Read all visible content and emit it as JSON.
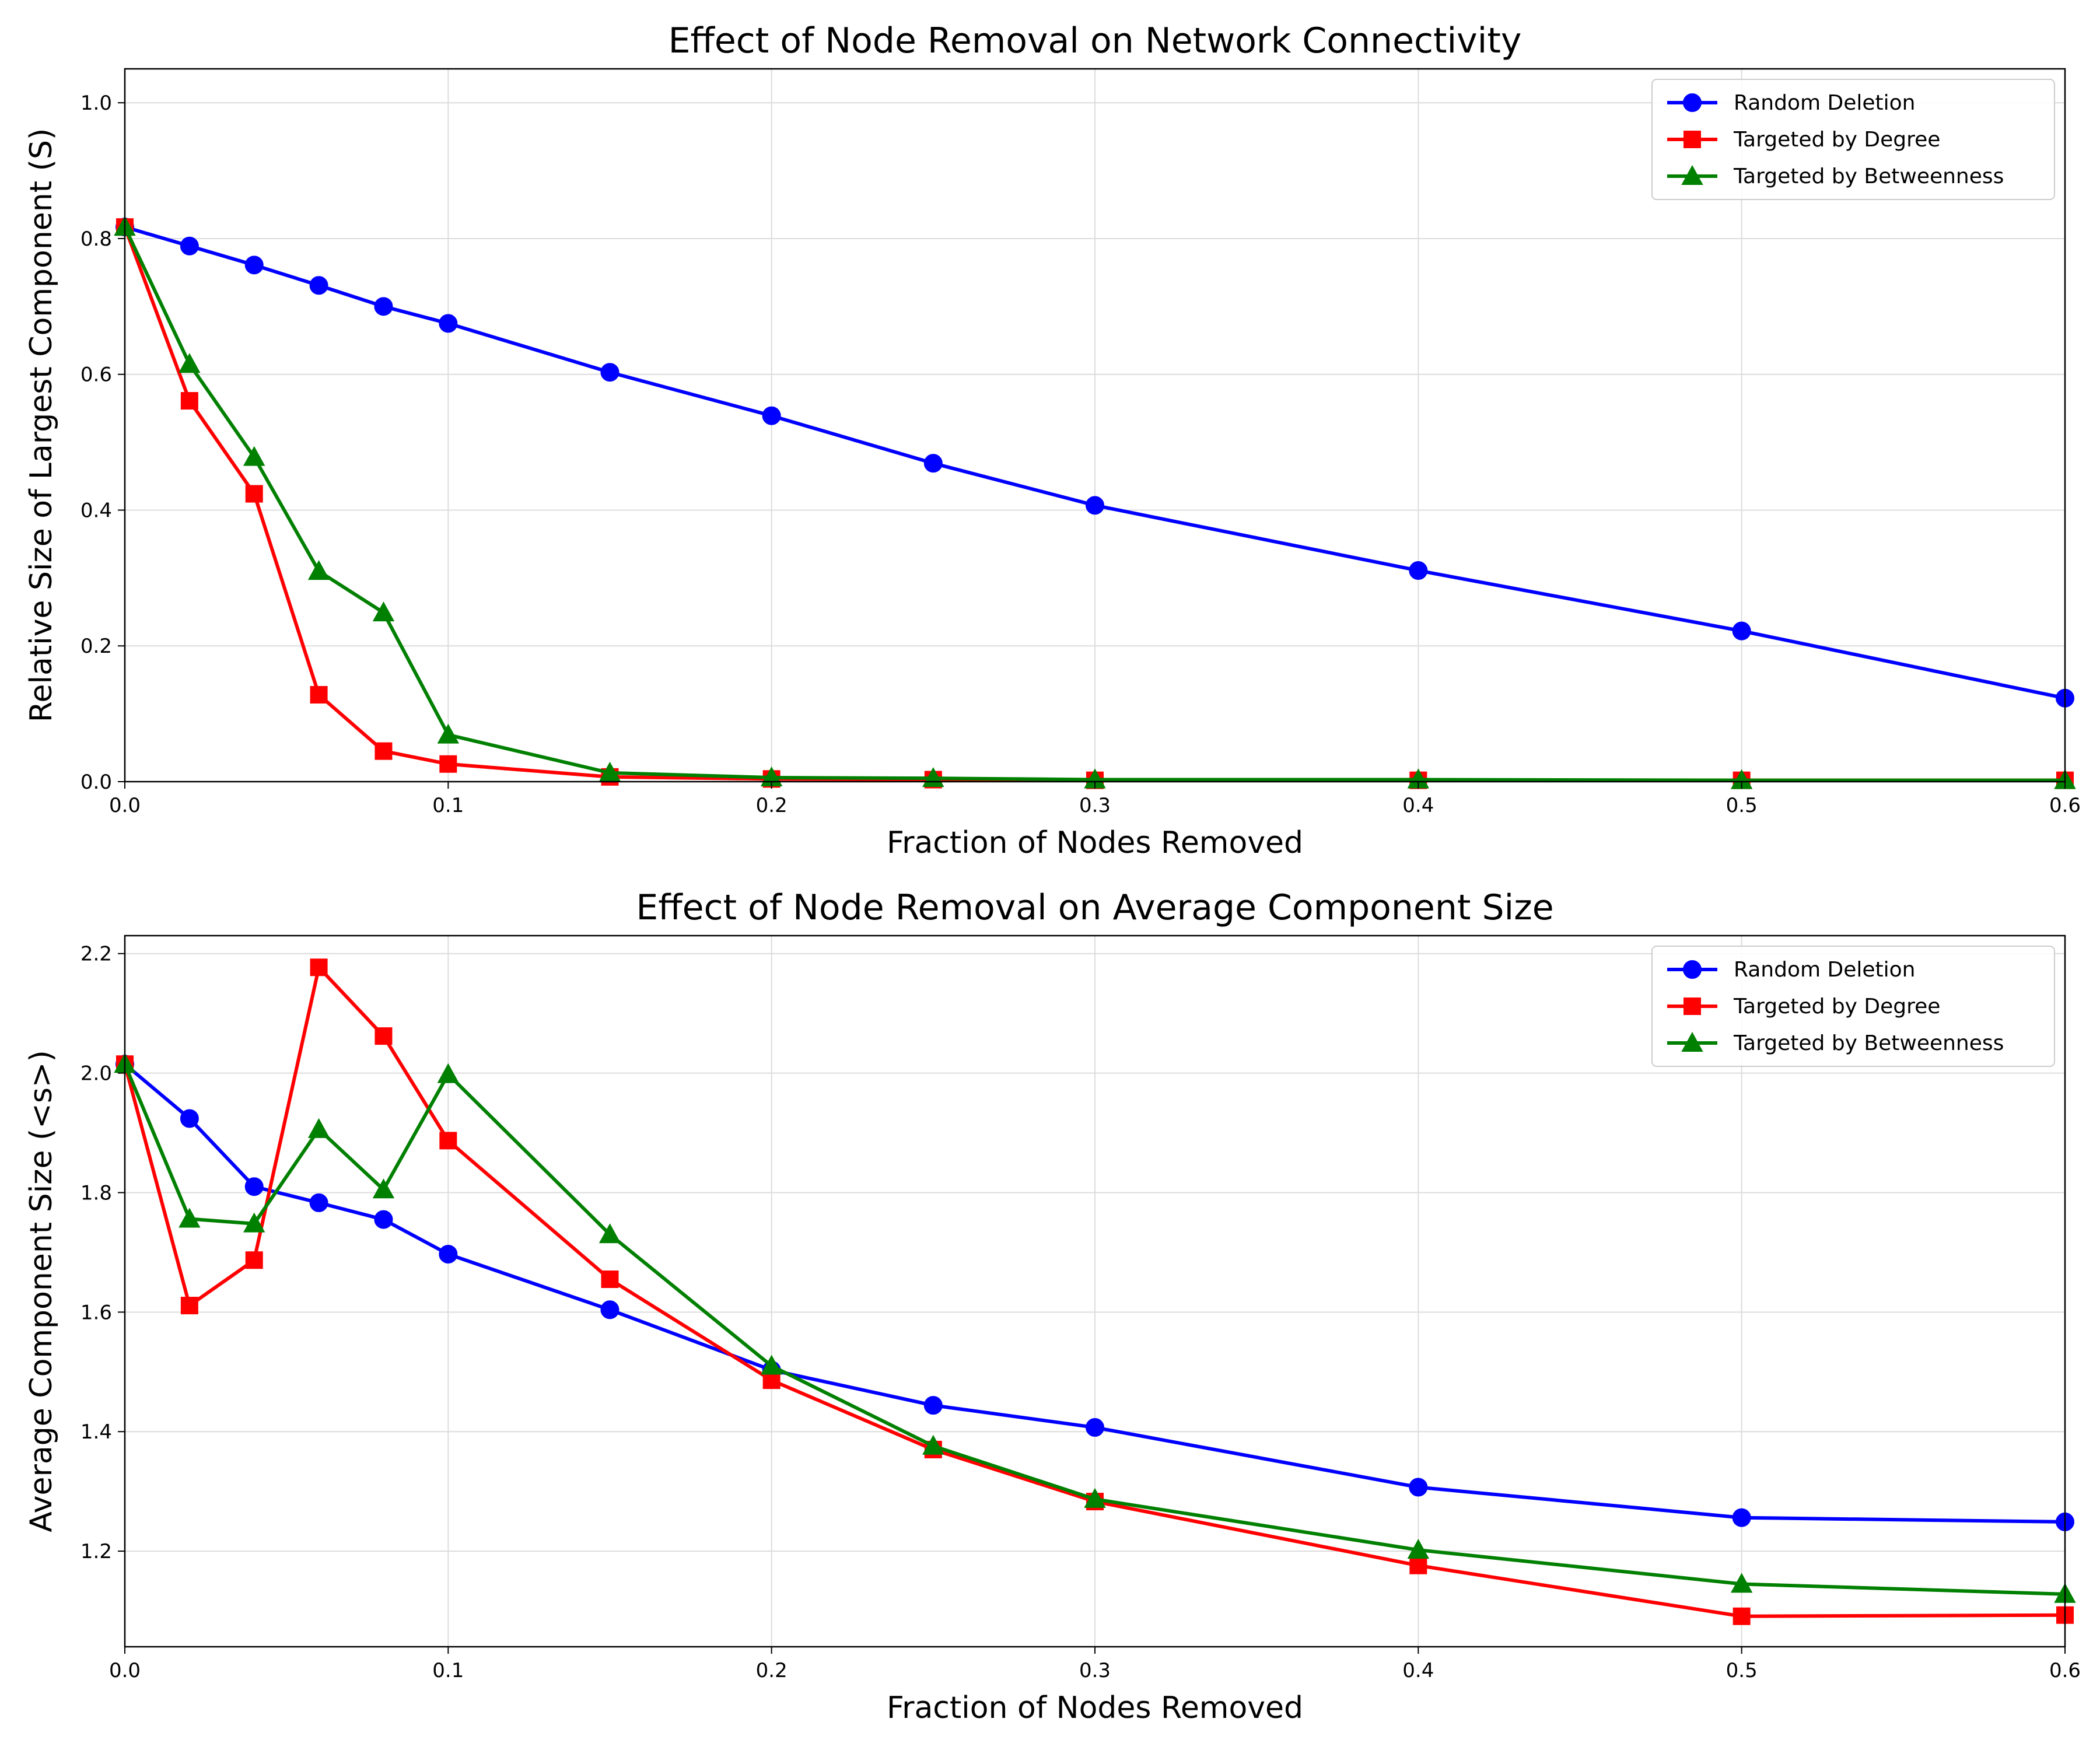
{
  "chart_data": [
    {
      "type": "line",
      "title": "Effect of Node Removal on Network Connectivity",
      "xlabel": "Fraction of Nodes Removed",
      "ylabel": "Relative Size of Largest Component (S)",
      "xlim": [
        0,
        0.6
      ],
      "ylim": [
        0,
        1.05
      ],
      "xticks": [
        0.0,
        0.1,
        0.2,
        0.3,
        0.4,
        0.5,
        0.6
      ],
      "xtick_labels": [
        "0.0",
        "0.1",
        "0.2",
        "0.3",
        "0.4",
        "0.5",
        "0.6"
      ],
      "yticks": [
        0.0,
        0.2,
        0.4,
        0.6,
        0.8,
        1.0
      ],
      "ytick_labels": [
        "0.0",
        "0.2",
        "0.4",
        "0.6",
        "0.8",
        "1.0"
      ],
      "grid": true,
      "legend_position": "top-right",
      "x": [
        0.0,
        0.02,
        0.04,
        0.06,
        0.08,
        0.1,
        0.15,
        0.2,
        0.25,
        0.3,
        0.4,
        0.5,
        0.6
      ],
      "series": [
        {
          "name": "Random Deletion",
          "color": "#0000ff",
          "marker": "circle",
          "values": [
            0.817,
            0.789,
            0.761,
            0.731,
            0.7,
            0.675,
            0.603,
            0.539,
            0.469,
            0.407,
            0.311,
            0.222,
            0.123
          ]
        },
        {
          "name": "Targeted by Degree",
          "color": "#ff0000",
          "marker": "square",
          "values": [
            0.817,
            0.561,
            0.424,
            0.128,
            0.045,
            0.026,
            0.007,
            0.004,
            0.003,
            0.002,
            0.002,
            0.002,
            0.002
          ]
        },
        {
          "name": "Targeted by Betweenness",
          "color": "#008000",
          "marker": "triangle",
          "values": [
            0.817,
            0.615,
            0.478,
            0.31,
            0.249,
            0.069,
            0.013,
            0.006,
            0.005,
            0.003,
            0.003,
            0.002,
            0.002
          ]
        }
      ]
    },
    {
      "type": "line",
      "title": "Effect of Node Removal on Average Component Size",
      "xlabel": "Fraction of Nodes Removed",
      "ylabel": "Average Component Size (<s>)",
      "xlim": [
        0,
        0.6
      ],
      "ylim": [
        1.04,
        2.23
      ],
      "xticks": [
        0.0,
        0.1,
        0.2,
        0.3,
        0.4,
        0.5,
        0.6
      ],
      "xtick_labels": [
        "0.0",
        "0.1",
        "0.2",
        "0.3",
        "0.4",
        "0.5",
        "0.6"
      ],
      "yticks": [
        1.2,
        1.4,
        1.6,
        1.8,
        2.0,
        2.2
      ],
      "ytick_labels": [
        "1.2",
        "1.4",
        "1.6",
        "1.8",
        "2.0",
        "2.2"
      ],
      "grid": true,
      "legend_position": "top-right",
      "x": [
        0.0,
        0.02,
        0.04,
        0.06,
        0.08,
        0.1,
        0.15,
        0.2,
        0.25,
        0.3,
        0.4,
        0.5,
        0.6
      ],
      "series": [
        {
          "name": "Random Deletion",
          "color": "#0000ff",
          "marker": "circle",
          "values": [
            2.015,
            1.924,
            1.81,
            1.783,
            1.755,
            1.697,
            1.604,
            1.503,
            1.444,
            1.407,
            1.307,
            1.256,
            1.249
          ]
        },
        {
          "name": "Targeted by Degree",
          "color": "#ff0000",
          "marker": "square",
          "values": [
            2.015,
            1.611,
            1.687,
            2.177,
            2.062,
            1.887,
            1.655,
            1.486,
            1.37,
            1.283,
            1.176,
            1.091,
            1.093
          ]
        },
        {
          "name": "Targeted by Betweenness",
          "color": "#008000",
          "marker": "triangle",
          "values": [
            2.015,
            1.756,
            1.748,
            1.906,
            1.805,
            1.998,
            1.73,
            1.51,
            1.376,
            1.287,
            1.202,
            1.145,
            1.128
          ]
        }
      ]
    }
  ]
}
